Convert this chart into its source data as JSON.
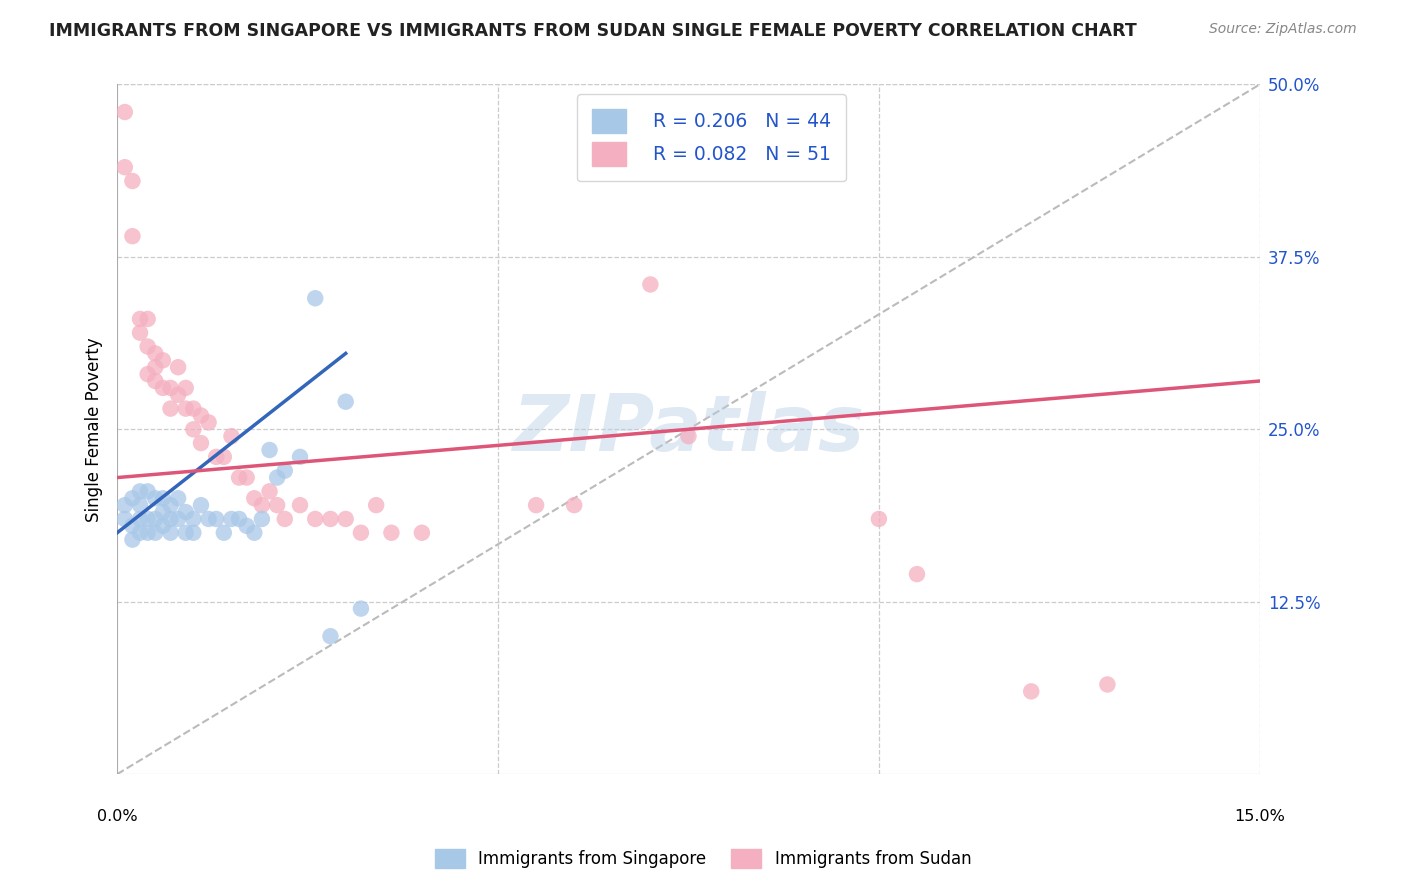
{
  "title": "IMMIGRANTS FROM SINGAPORE VS IMMIGRANTS FROM SUDAN SINGLE FEMALE POVERTY CORRELATION CHART",
  "source": "Source: ZipAtlas.com",
  "ylabel": "Single Female Poverty",
  "xlim": [
    0.0,
    0.15
  ],
  "ylim": [
    0.0,
    0.5
  ],
  "watermark": "ZIPatlas",
  "legend_r1": "R = 0.206",
  "legend_n1": "N = 44",
  "legend_r2": "R = 0.082",
  "legend_n2": "N = 51",
  "singapore_color": "#a8c8e8",
  "sudan_color": "#f4afc0",
  "singapore_line_color": "#3366bb",
  "sudan_line_color": "#dd5577",
  "diagonal_color": "#bbbbbb",
  "singapore_points_x": [
    0.001,
    0.001,
    0.002,
    0.002,
    0.002,
    0.003,
    0.003,
    0.003,
    0.003,
    0.004,
    0.004,
    0.004,
    0.005,
    0.005,
    0.005,
    0.006,
    0.006,
    0.006,
    0.007,
    0.007,
    0.007,
    0.008,
    0.008,
    0.009,
    0.009,
    0.01,
    0.01,
    0.011,
    0.012,
    0.013,
    0.014,
    0.015,
    0.016,
    0.017,
    0.018,
    0.019,
    0.02,
    0.021,
    0.022,
    0.024,
    0.026,
    0.028,
    0.03,
    0.032
  ],
  "singapore_points_y": [
    0.185,
    0.195,
    0.17,
    0.18,
    0.2,
    0.175,
    0.185,
    0.195,
    0.205,
    0.175,
    0.185,
    0.205,
    0.175,
    0.185,
    0.2,
    0.18,
    0.19,
    0.2,
    0.175,
    0.185,
    0.195,
    0.185,
    0.2,
    0.175,
    0.19,
    0.175,
    0.185,
    0.195,
    0.185,
    0.185,
    0.175,
    0.185,
    0.185,
    0.18,
    0.175,
    0.185,
    0.235,
    0.215,
    0.22,
    0.23,
    0.345,
    0.1,
    0.27,
    0.12
  ],
  "sudan_points_x": [
    0.001,
    0.001,
    0.002,
    0.002,
    0.003,
    0.003,
    0.004,
    0.004,
    0.004,
    0.005,
    0.005,
    0.005,
    0.006,
    0.006,
    0.007,
    0.007,
    0.008,
    0.008,
    0.009,
    0.009,
    0.01,
    0.01,
    0.011,
    0.011,
    0.012,
    0.013,
    0.014,
    0.015,
    0.016,
    0.017,
    0.018,
    0.019,
    0.02,
    0.021,
    0.022,
    0.024,
    0.026,
    0.028,
    0.03,
    0.032,
    0.034,
    0.036,
    0.04,
    0.07,
    0.075,
    0.1,
    0.105,
    0.12,
    0.13,
    0.055,
    0.06
  ],
  "sudan_points_y": [
    0.48,
    0.44,
    0.43,
    0.39,
    0.33,
    0.32,
    0.33,
    0.31,
    0.29,
    0.305,
    0.295,
    0.285,
    0.28,
    0.3,
    0.265,
    0.28,
    0.295,
    0.275,
    0.28,
    0.265,
    0.265,
    0.25,
    0.26,
    0.24,
    0.255,
    0.23,
    0.23,
    0.245,
    0.215,
    0.215,
    0.2,
    0.195,
    0.205,
    0.195,
    0.185,
    0.195,
    0.185,
    0.185,
    0.185,
    0.175,
    0.195,
    0.175,
    0.175,
    0.355,
    0.245,
    0.185,
    0.145,
    0.06,
    0.065,
    0.195,
    0.195
  ]
}
